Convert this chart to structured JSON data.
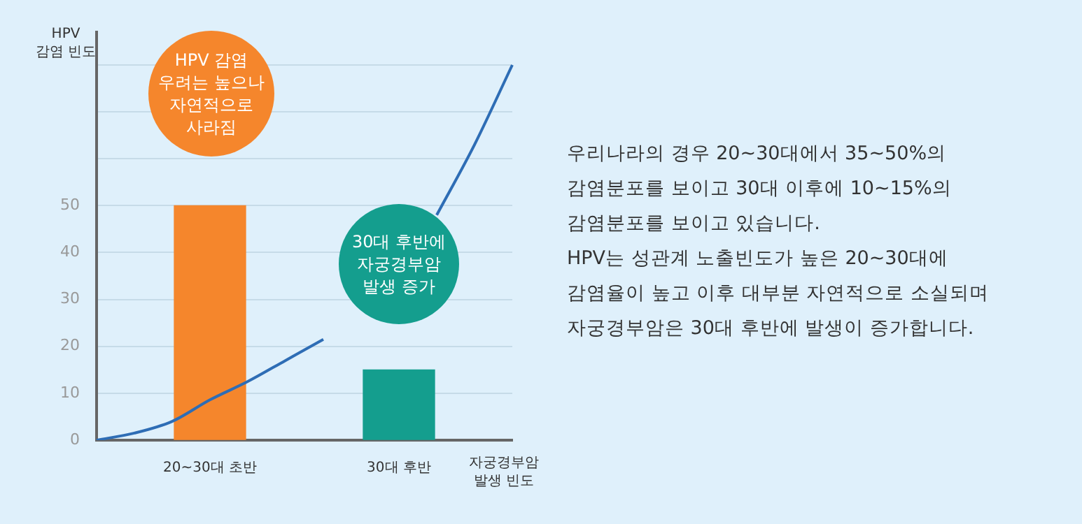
{
  "chart_data": {
    "type": "bar",
    "xlabel": "자궁경부암\n발생 빈도",
    "ylabel": "HPV\n감염 빈도",
    "categories": [
      null,
      null,
      null,
      "20~30대 초반",
      null,
      null,
      null,
      null,
      "30대 후반",
      null,
      null,
      null
    ],
    "series": [
      {
        "colors": [
          null,
          null,
          null,
          "#f5862c",
          null,
          null,
          null,
          null,
          "#149e8e",
          null,
          null,
          null
        ],
        "values": [
          null,
          null,
          null,
          50,
          null,
          null,
          null,
          null,
          15,
          null,
          null,
          null
        ]
      },
      {
        "type": "line",
        "color": "#2e6db5",
        "values": [
          0,
          1.5,
          4,
          8.6,
          12.5,
          17,
          21.5,
          null,
          null,
          48,
          63,
          80
        ]
      }
    ],
    "ylim": [
      0,
      87
    ],
    "yticks": [
      0,
      10,
      20,
      30,
      40,
      50,
      {
        "value": 60,
        "label": null
      },
      {
        "value": 70,
        "label": null
      },
      {
        "value": 80,
        "label": null
      }
    ],
    "grid": "y",
    "legend": false,
    "marker": "none",
    "line_style": "solid",
    "annotations": [
      "HPV 감염\n우려는 높으나\n자연적으로\n사라짐",
      "30대 후반에\n자궁경부암\n발생 증가",
      "우리나라의 경우 20~30대에서 35~50%의\n감염분포를 보이고 30대 이후에 10~15%의\n감염분포를 보이고 있습니다.\nHPV는 성관계 노출빈도가 높은 20~30대에\n감염율이 높고 이후 대부분 자연적으로 소실되며\n자궁경부암은 30대 후반에 발생이 증가합니다."
    ]
  }
}
